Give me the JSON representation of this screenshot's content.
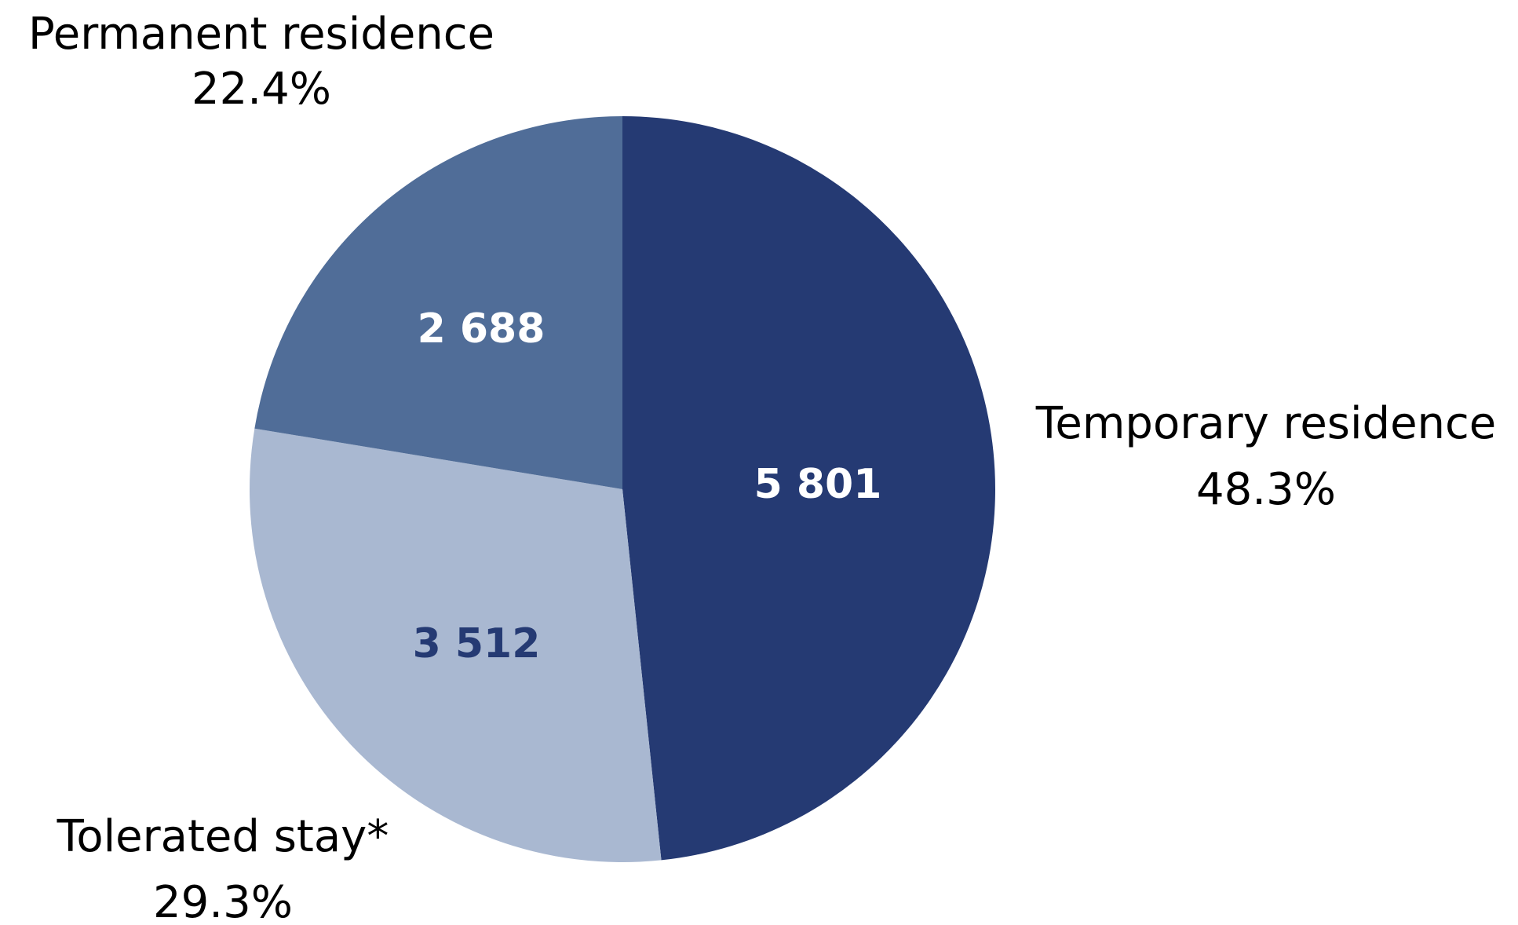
{
  "chart_data": {
    "type": "pie",
    "categories": [
      "Temporary residence",
      "Tolerated stay*",
      "Permanent residence"
    ],
    "values": [
      5801,
      3512,
      2688
    ],
    "value_labels": [
      "5 801",
      "3 512",
      "2 688"
    ],
    "percentages": [
      48.3,
      29.3,
      22.4
    ],
    "percentage_labels": [
      "48.3%",
      "29.3%",
      "22.4%"
    ],
    "colors": [
      "#253a73",
      "#a9b8d1",
      "#506d98"
    ],
    "value_label_colors": [
      "#ffffff",
      "#253a73",
      "#ffffff"
    ]
  }
}
